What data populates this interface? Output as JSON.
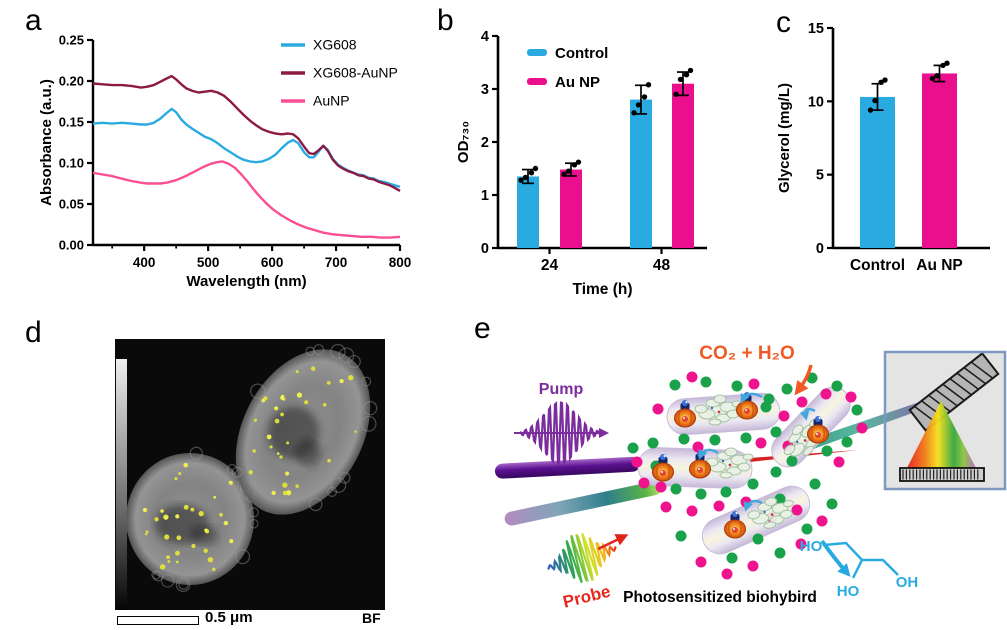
{
  "panel_labels": {
    "a": "a",
    "b": "b",
    "c": "c",
    "d": "d",
    "e": "e"
  },
  "chart_data": [
    {
      "id": "a",
      "type": "line",
      "xlabel": "Wavelength (nm)",
      "ylabel": "Absorbance (a.u.)",
      "xlim": [
        320,
        800
      ],
      "ylim": [
        0,
        0.25
      ],
      "xticks": [
        400,
        500,
        600,
        700,
        800
      ],
      "xticks_minor": [
        350,
        450,
        550,
        650,
        750
      ],
      "yticks": [
        "0.00",
        "0.05",
        "0.10",
        "0.15",
        "0.20",
        "0.25"
      ],
      "legend_position": "top-right",
      "grid": false,
      "series": [
        {
          "name": "XG608",
          "color": "#29ABE2",
          "points": [
            [
              320,
              0.148
            ],
            [
              335,
              0.149
            ],
            [
              350,
              0.148
            ],
            [
              365,
              0.149
            ],
            [
              380,
              0.148
            ],
            [
              395,
              0.147
            ],
            [
              405,
              0.147
            ],
            [
              415,
              0.149
            ],
            [
              425,
              0.154
            ],
            [
              435,
              0.161
            ],
            [
              443,
              0.166
            ],
            [
              450,
              0.162
            ],
            [
              458,
              0.153
            ],
            [
              466,
              0.147
            ],
            [
              475,
              0.142
            ],
            [
              485,
              0.137
            ],
            [
              495,
              0.132
            ],
            [
              505,
              0.129
            ],
            [
              515,
              0.124
            ],
            [
              525,
              0.118
            ],
            [
              535,
              0.113
            ],
            [
              545,
              0.108
            ],
            [
              555,
              0.104
            ],
            [
              565,
              0.102
            ],
            [
              575,
              0.101
            ],
            [
              585,
              0.102
            ],
            [
              595,
              0.105
            ],
            [
              605,
              0.11
            ],
            [
              615,
              0.118
            ],
            [
              625,
              0.125
            ],
            [
              633,
              0.128
            ],
            [
              641,
              0.124
            ],
            [
              650,
              0.113
            ],
            [
              658,
              0.107
            ],
            [
              665,
              0.107
            ],
            [
              672,
              0.113
            ],
            [
              680,
              0.121
            ],
            [
              687,
              0.116
            ],
            [
              695,
              0.105
            ],
            [
              703,
              0.098
            ],
            [
              711,
              0.094
            ],
            [
              719,
              0.091
            ],
            [
              727,
              0.088
            ],
            [
              735,
              0.086
            ],
            [
              743,
              0.085
            ],
            [
              751,
              0.082
            ],
            [
              759,
              0.081
            ],
            [
              767,
              0.078
            ],
            [
              775,
              0.077
            ],
            [
              783,
              0.075
            ],
            [
              791,
              0.073
            ],
            [
              800,
              0.071
            ]
          ]
        },
        {
          "name": "XG608-AuNP",
          "color": "#8C1A44",
          "points": [
            [
              320,
              0.197
            ],
            [
              335,
              0.196
            ],
            [
              350,
              0.195
            ],
            [
              365,
              0.195
            ],
            [
              380,
              0.194
            ],
            [
              395,
              0.192
            ],
            [
              405,
              0.193
            ],
            [
              415,
              0.195
            ],
            [
              425,
              0.199
            ],
            [
              435,
              0.203
            ],
            [
              443,
              0.206
            ],
            [
              450,
              0.202
            ],
            [
              458,
              0.196
            ],
            [
              466,
              0.191
            ],
            [
              475,
              0.188
            ],
            [
              485,
              0.186
            ],
            [
              495,
              0.187
            ],
            [
              505,
              0.188
            ],
            [
              515,
              0.186
            ],
            [
              525,
              0.182
            ],
            [
              535,
              0.175
            ],
            [
              545,
              0.167
            ],
            [
              555,
              0.159
            ],
            [
              565,
              0.152
            ],
            [
              575,
              0.146
            ],
            [
              585,
              0.141
            ],
            [
              595,
              0.138
            ],
            [
              605,
              0.136
            ],
            [
              615,
              0.135
            ],
            [
              625,
              0.136
            ],
            [
              633,
              0.135
            ],
            [
              641,
              0.13
            ],
            [
              650,
              0.12
            ],
            [
              658,
              0.112
            ],
            [
              665,
              0.111
            ],
            [
              672,
              0.115
            ],
            [
              680,
              0.121
            ],
            [
              687,
              0.115
            ],
            [
              695,
              0.104
            ],
            [
              703,
              0.097
            ],
            [
              711,
              0.093
            ],
            [
              719,
              0.09
            ],
            [
              727,
              0.088
            ],
            [
              735,
              0.085
            ],
            [
              743,
              0.084
            ],
            [
              751,
              0.081
            ],
            [
              759,
              0.08
            ],
            [
              767,
              0.077
            ],
            [
              775,
              0.075
            ],
            [
              783,
              0.073
            ],
            [
              791,
              0.07
            ],
            [
              800,
              0.066
            ]
          ]
        },
        {
          "name": "AuNP",
          "color": "#FB4F93",
          "points": [
            [
              320,
              0.088
            ],
            [
              335,
              0.086
            ],
            [
              350,
              0.084
            ],
            [
              365,
              0.081
            ],
            [
              380,
              0.078
            ],
            [
              395,
              0.076
            ],
            [
              405,
              0.075
            ],
            [
              415,
              0.075
            ],
            [
              425,
              0.075
            ],
            [
              435,
              0.076
            ],
            [
              450,
              0.079
            ],
            [
              465,
              0.084
            ],
            [
              480,
              0.09
            ],
            [
              492,
              0.095
            ],
            [
              504,
              0.099
            ],
            [
              514,
              0.101
            ],
            [
              522,
              0.102
            ],
            [
              532,
              0.099
            ],
            [
              542,
              0.094
            ],
            [
              552,
              0.086
            ],
            [
              562,
              0.077
            ],
            [
              572,
              0.067
            ],
            [
              582,
              0.058
            ],
            [
              592,
              0.05
            ],
            [
              602,
              0.043
            ],
            [
              615,
              0.036
            ],
            [
              628,
              0.03
            ],
            [
              641,
              0.025
            ],
            [
              654,
              0.021
            ],
            [
              667,
              0.018
            ],
            [
              680,
              0.015
            ],
            [
              695,
              0.013
            ],
            [
              710,
              0.012
            ],
            [
              725,
              0.011
            ],
            [
              740,
              0.01
            ],
            [
              755,
              0.01
            ],
            [
              770,
              0.009
            ],
            [
              785,
              0.009
            ],
            [
              800,
              0.01
            ]
          ]
        }
      ]
    },
    {
      "id": "b",
      "type": "bar",
      "ylabel": "OD₇₃₀",
      "xlabel": "Time (h)",
      "ylim": [
        0,
        4
      ],
      "yticks": [
        0,
        1,
        2,
        3,
        4
      ],
      "categories": [
        "24",
        "48"
      ],
      "legend_position": "top-left",
      "series": [
        {
          "name": "Control",
          "color": "#29ABE2",
          "values": [
            1.35,
            2.8
          ],
          "errors": [
            0.13,
            0.27
          ],
          "points": [
            [
              1.28,
              1.33,
              1.42,
              1.5
            ],
            [
              2.55,
              2.7,
              2.85,
              3.08
            ]
          ]
        },
        {
          "name": "Au NP",
          "color": "#EC0F8D",
          "values": [
            1.48,
            3.1
          ],
          "errors": [
            0.12,
            0.22
          ],
          "points": [
            [
              1.39,
              1.45,
              1.57,
              1.62
            ],
            [
              2.9,
              3.18,
              3.27,
              3.35
            ]
          ]
        }
      ]
    },
    {
      "id": "c",
      "type": "bar",
      "ylabel": "Glycerol (mg/L)",
      "xlabel": "",
      "ylim": [
        0,
        15
      ],
      "yticks": [
        0,
        5,
        10,
        15
      ],
      "categories": [
        "Control",
        "Au NP"
      ],
      "series": [
        {
          "name": "",
          "colors": [
            "#29ABE2",
            "#EC0F8D"
          ],
          "values": [
            10.3,
            11.9
          ],
          "errors": [
            0.9,
            0.55
          ],
          "points": [
            [
              9.4,
              10.05,
              11.3,
              11.45
            ],
            [
              11.55,
              11.75,
              12.45,
              12.6
            ]
          ]
        }
      ]
    }
  ],
  "panel_d": {
    "scale_bar_label": "0.5 μm",
    "mode_label": "BF"
  },
  "panel_e": {
    "pump_label": "Pump",
    "probe_label": "Probe",
    "reaction_label": "CO₂ + H₂O",
    "caption": "Photosensitized biohybird",
    "glycerol": {
      "ho_top": "HO",
      "ho_bottom": "HO",
      "oh_right": "OH"
    },
    "colors": {
      "pump": "#7B2D9E",
      "probe_text": "#E8281E",
      "reaction": "#F15A24",
      "glycerol": "#29ABE2",
      "green_dot": "#19A24A",
      "magenta_dot": "#F0138E"
    }
  }
}
